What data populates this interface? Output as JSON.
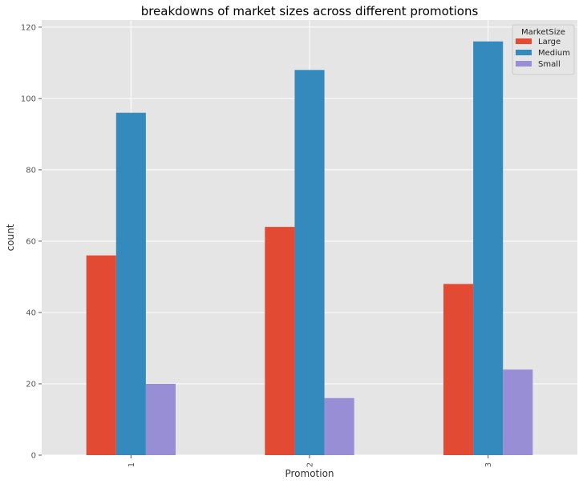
{
  "chart_data": {
    "type": "bar",
    "title": "breakdowns of market sizes across different promotions",
    "xlabel": "Promotion",
    "ylabel": "count",
    "categories": [
      "1",
      "2",
      "3"
    ],
    "series": [
      {
        "name": "Large",
        "values": [
          56,
          64,
          48
        ],
        "color": "#E24A33"
      },
      {
        "name": "Medium",
        "values": [
          96,
          108,
          116
        ],
        "color": "#348ABD"
      },
      {
        "name": "Small",
        "values": [
          20,
          16,
          24
        ],
        "color": "#988ED5"
      }
    ],
    "ylim": [
      0,
      122
    ],
    "yticks": [
      "0",
      "20",
      "40",
      "60",
      "80",
      "100",
      "120"
    ],
    "grid": true,
    "legend": {
      "title": "MarketSize",
      "position": "top-right"
    },
    "colors": {
      "background": "#E5E5E5",
      "grid": "#FFFFFF"
    }
  }
}
